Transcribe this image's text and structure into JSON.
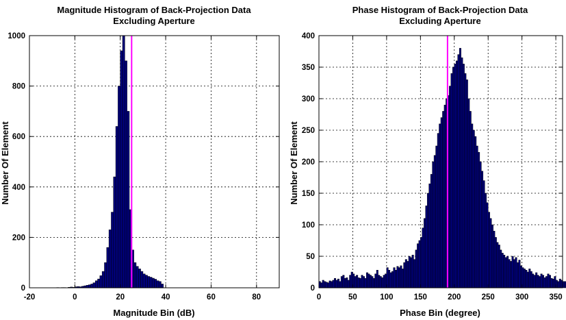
{
  "chart_data": [
    {
      "type": "bar",
      "title": [
        "Magnitude Histogram of Back-Projection Data",
        "Excluding Aperture"
      ],
      "xlabel": "Magnitude Bin (dB)",
      "ylabel": "Number Of Element",
      "xlim": [
        -20,
        90
      ],
      "ylim": [
        0,
        1000
      ],
      "xticks": [
        -20,
        0,
        20,
        40,
        60,
        80
      ],
      "yticks": [
        0,
        200,
        400,
        600,
        800,
        1000
      ],
      "grid": true,
      "bar_color": "#00007a",
      "marker_color": "#ff00ff",
      "marker_x": 25,
      "bin_width": 1,
      "bin_start": -8,
      "values": [
        1,
        0,
        1,
        1,
        0,
        2,
        3,
        2,
        4,
        5,
        4,
        6,
        8,
        10,
        12,
        15,
        20,
        28,
        35,
        48,
        65,
        100,
        160,
        230,
        300,
        440,
        640,
        800,
        940,
        1000,
        900,
        700,
        310,
        150,
        100,
        85,
        75,
        65,
        55,
        50,
        45,
        42,
        38,
        34,
        28,
        25,
        15
      ]
    },
    {
      "type": "bar",
      "title": [
        "Phase Histogram of Back-Projection Data",
        "Excluding Aperture"
      ],
      "xlabel": "Phase Bin (degree)",
      "ylabel": "Number Of Element",
      "xlim": [
        0,
        360
      ],
      "ylim": [
        0,
        400
      ],
      "xticks": [
        0,
        50,
        100,
        150,
        200,
        250,
        300,
        350
      ],
      "yticks": [
        0,
        50,
        100,
        150,
        200,
        250,
        300,
        350,
        400
      ],
      "grid": true,
      "bar_color": "#00007a",
      "marker_color": "#ff00ff",
      "marker_x": 190,
      "bin_width": 2.5,
      "bin_start": 0,
      "values": [
        10,
        8,
        12,
        10,
        9,
        8,
        11,
        10,
        12,
        15,
        12,
        14,
        10,
        18,
        20,
        15,
        16,
        12,
        20,
        25,
        22,
        18,
        20,
        16,
        15,
        20,
        18,
        15,
        24,
        22,
        20,
        18,
        15,
        22,
        28,
        20,
        18,
        16,
        20,
        22,
        32,
        28,
        24,
        26,
        32,
        28,
        34,
        32,
        35,
        30,
        40,
        45,
        42,
        50,
        48,
        52,
        45,
        60,
        70,
        75,
        80,
        95,
        110,
        130,
        150,
        165,
        180,
        200,
        210,
        225,
        245,
        260,
        270,
        280,
        290,
        300,
        305,
        320,
        340,
        350,
        355,
        360,
        370,
        380,
        365,
        355,
        340,
        330,
        300,
        280,
        260,
        250,
        240,
        225,
        215,
        200,
        185,
        170,
        150,
        135,
        120,
        110,
        100,
        90,
        80,
        72,
        68,
        60,
        55,
        52,
        48,
        50,
        45,
        42,
        50,
        45,
        48,
        40,
        44,
        35,
        32,
        30,
        28,
        25,
        30,
        26,
        22,
        20,
        24,
        20,
        18,
        22,
        20,
        16,
        18,
        22,
        20,
        15,
        14,
        18,
        12,
        10,
        14,
        12,
        10,
        10,
        8,
        6,
        10,
        12
      ]
    }
  ]
}
